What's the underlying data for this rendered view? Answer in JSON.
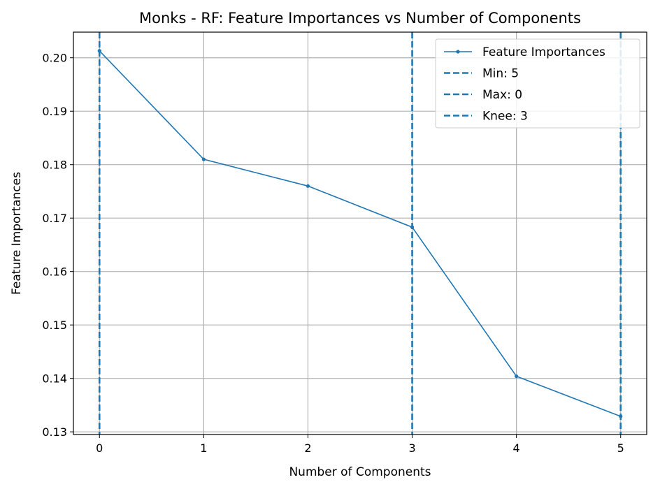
{
  "chart_data": {
    "type": "line",
    "title": "Monks - RF: Feature Importances vs Number of Components",
    "xlabel": "Number of Components",
    "ylabel": "Feature Importances",
    "x": [
      0,
      1,
      2,
      3,
      4,
      5
    ],
    "series": [
      {
        "name": "Feature Importances",
        "color": "#1f77b4",
        "values": [
          0.2013,
          0.181,
          0.176,
          0.1683,
          0.1404,
          0.1329
        ]
      }
    ],
    "vlines": [
      {
        "label": "Min: 5",
        "x": 5,
        "color": "#1f77b4",
        "style": "dashed"
      },
      {
        "label": "Max: 0",
        "x": 0,
        "color": "#1f77b4",
        "style": "dashed"
      },
      {
        "label": "Knee: 3",
        "x": 3,
        "color": "#1f77b4",
        "style": "dashed"
      }
    ],
    "xlim": [
      -0.25,
      5.25
    ],
    "ylim": [
      0.1295,
      0.2048
    ],
    "xticks": [
      0,
      1,
      2,
      3,
      4,
      5
    ],
    "yticks": [
      0.13,
      0.14,
      0.15,
      0.16,
      0.17,
      0.18,
      0.19,
      0.2
    ],
    "ytick_labels": [
      "0.13",
      "0.14",
      "0.15",
      "0.16",
      "0.17",
      "0.18",
      "0.19",
      "0.20"
    ],
    "grid": true,
    "legend_position": "top-right"
  }
}
